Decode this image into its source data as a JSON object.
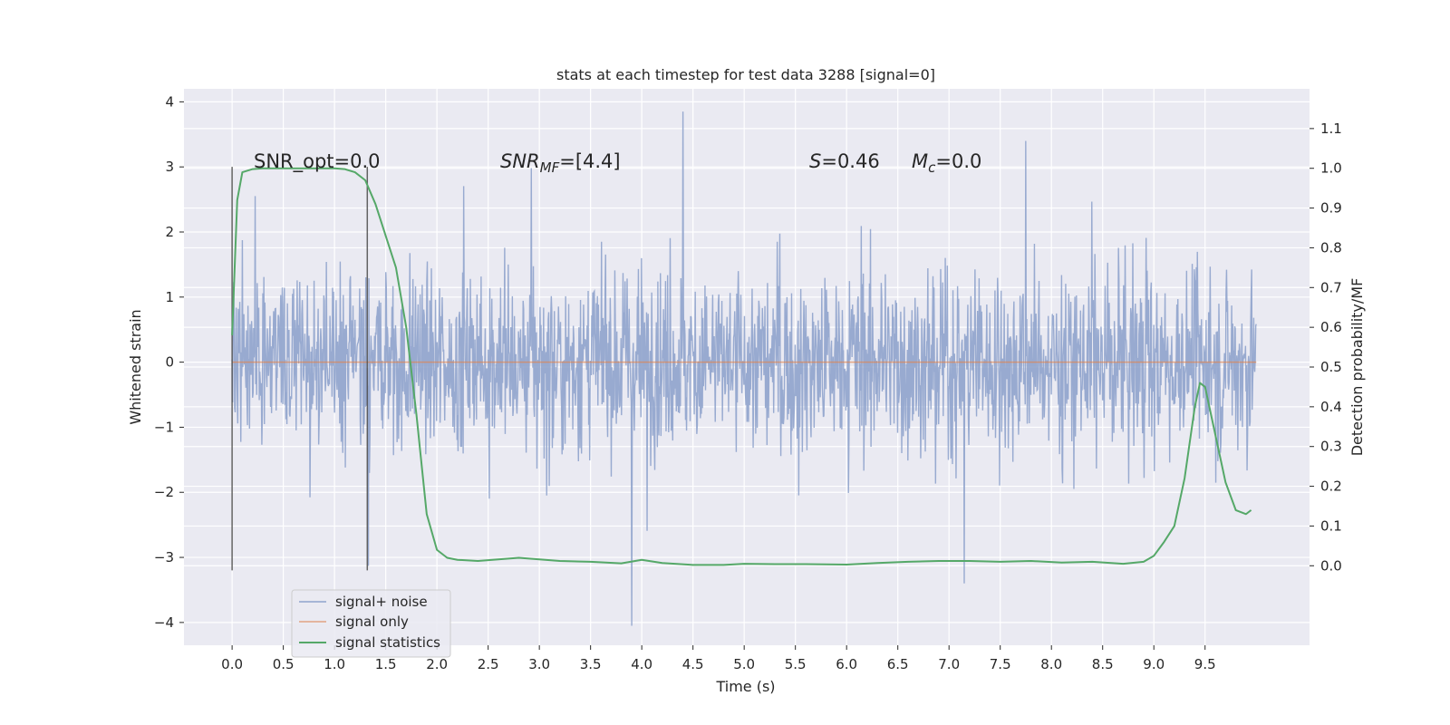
{
  "chart_data": {
    "type": "line",
    "title": "stats at each timestep for test data 3288 [signal=0]",
    "xlabel": "Time (s)",
    "ylabel": "Whitened strain",
    "ylabel_right": "Detection probability/MF",
    "xlim": [
      -0.47,
      10.52
    ],
    "ylim": [
      -4.35,
      4.2
    ],
    "ylim_right": [
      -0.2,
      1.2
    ],
    "x_ticks": [
      "0.0",
      "0.5",
      "1.0",
      "1.5",
      "2.0",
      "2.5",
      "3.0",
      "3.5",
      "4.0",
      "4.5",
      "5.0",
      "5.5",
      "6.0",
      "6.5",
      "7.0",
      "7.5",
      "8.0",
      "8.5",
      "9.0",
      "9.5"
    ],
    "y_ticks": [
      "−4",
      "−3",
      "−2",
      "−1",
      "0",
      "1",
      "2",
      "3",
      "4"
    ],
    "y_ticks_right": [
      "0.0",
      "0.1",
      "0.2",
      "0.3",
      "0.4",
      "0.5",
      "0.6",
      "0.7",
      "0.8",
      "0.9",
      "1.0",
      "1.1"
    ],
    "grid": true,
    "legend_position": "lower-left",
    "annotations": {
      "snr_opt": "SNR_opt=0.0",
      "snr_mf": "SNR",
      "snr_mf_sub": "MF",
      "snr_mf_value": "=[4.4]",
      "s_name": "S",
      "s_value": "=0.46",
      "mc_name": "M",
      "mc_sub": "c",
      "mc_value": "=0.0"
    },
    "vlines": [
      {
        "x": 0.0,
        "y_range": [
          -3.2,
          3.0
        ]
      },
      {
        "x": 1.32,
        "y_range": [
          -3.2,
          3.0
        ]
      }
    ],
    "series": [
      {
        "name": "signal+ noise",
        "color": "#8fa3cc",
        "axis": "left",
        "t_range": [
          0.0,
          10.0
        ],
        "envelope": "noise ~ ±1.2 typical, spikes up to 3.85 at t≈4.4, minimum −4.05 at t≈3.9"
      },
      {
        "name": "signal only",
        "color": "#dd8452",
        "axis": "left",
        "x": [
          0.0,
          10.0
        ],
        "values": [
          0.0,
          0.0
        ]
      },
      {
        "name": "signal statistics",
        "color": "#55a868",
        "axis": "right",
        "x": [
          0.0,
          0.05,
          0.1,
          0.2,
          0.3,
          0.5,
          0.8,
          1.0,
          1.1,
          1.2,
          1.3,
          1.4,
          1.5,
          1.6,
          1.7,
          1.8,
          1.9,
          2.0,
          2.1,
          2.2,
          2.4,
          2.6,
          2.8,
          3.0,
          3.2,
          3.5,
          3.8,
          4.0,
          4.2,
          4.5,
          4.8,
          5.0,
          5.3,
          5.6,
          6.0,
          6.3,
          6.6,
          6.9,
          7.2,
          7.5,
          7.8,
          8.1,
          8.4,
          8.7,
          8.9,
          9.0,
          9.1,
          9.2,
          9.3,
          9.4,
          9.45,
          9.5,
          9.55,
          9.6,
          9.7,
          9.8,
          9.9,
          9.95
        ],
        "values": [
          0.58,
          0.92,
          0.99,
          0.998,
          1.0,
          1.0,
          1.0,
          1.0,
          0.998,
          0.99,
          0.97,
          0.91,
          0.83,
          0.75,
          0.6,
          0.38,
          0.13,
          0.04,
          0.02,
          0.015,
          0.012,
          0.016,
          0.02,
          0.016,
          0.012,
          0.01,
          0.006,
          0.015,
          0.007,
          0.002,
          0.002,
          0.005,
          0.004,
          0.004,
          0.003,
          0.007,
          0.01,
          0.012,
          0.012,
          0.01,
          0.012,
          0.008,
          0.01,
          0.005,
          0.01,
          0.025,
          0.06,
          0.1,
          0.22,
          0.4,
          0.46,
          0.45,
          0.39,
          0.33,
          0.21,
          0.14,
          0.13,
          0.14
        ]
      }
    ]
  }
}
